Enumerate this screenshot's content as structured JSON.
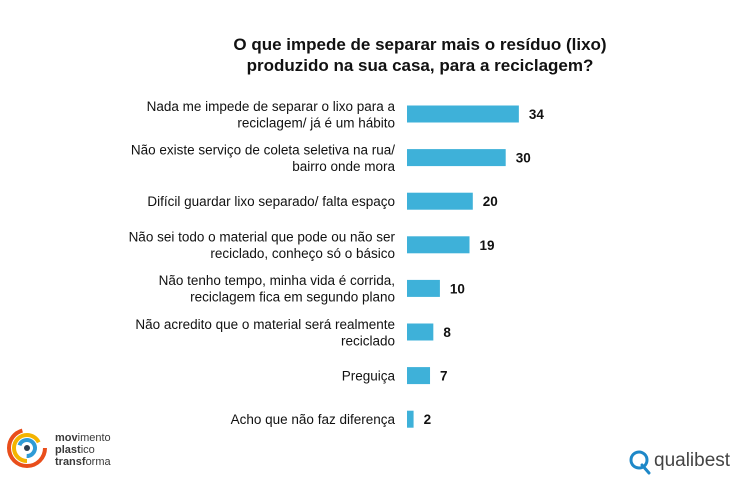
{
  "chart_data": {
    "type": "bar",
    "orientation": "horizontal",
    "title_lines": [
      "O que impede de separar mais o resíduo (lixo)",
      "produzido na sua casa, para a reciclagem?"
    ],
    "categories": [
      [
        "Nada me impede de separar o lixo para a",
        "reciclagem/ já é um hábito"
      ],
      [
        "Não existe serviço de coleta seletiva na rua/",
        "bairro onde mora"
      ],
      [
        "Difícil guardar lixo separado/ falta espaço"
      ],
      [
        "Não sei todo o material que pode ou não ser",
        "reciclado, conheço só o básico"
      ],
      [
        "Não tenho tempo, minha vida é corrida,",
        "reciclagem fica em segundo plano"
      ],
      [
        "Não acredito que o material será realmente",
        "reciclado"
      ],
      [
        "Preguiça"
      ],
      [
        "Acho que não faz diferença"
      ]
    ],
    "values": [
      34,
      30,
      20,
      19,
      10,
      8,
      7,
      2
    ],
    "bar_color": "#3EB1D9",
    "grid": false
  },
  "logos": {
    "left": {
      "words": [
        {
          "bold": "mov",
          "rest": "imento"
        },
        {
          "bold": "plast",
          "rest": "ico"
        },
        {
          "bold": "transf",
          "rest": "orma"
        }
      ],
      "ring_colors": [
        "#E94E1B",
        "#F4B400",
        "#2E9BD6",
        "#2C3E50"
      ]
    },
    "right": {
      "text": "qualibest",
      "icon": "q-logo-icon"
    }
  }
}
